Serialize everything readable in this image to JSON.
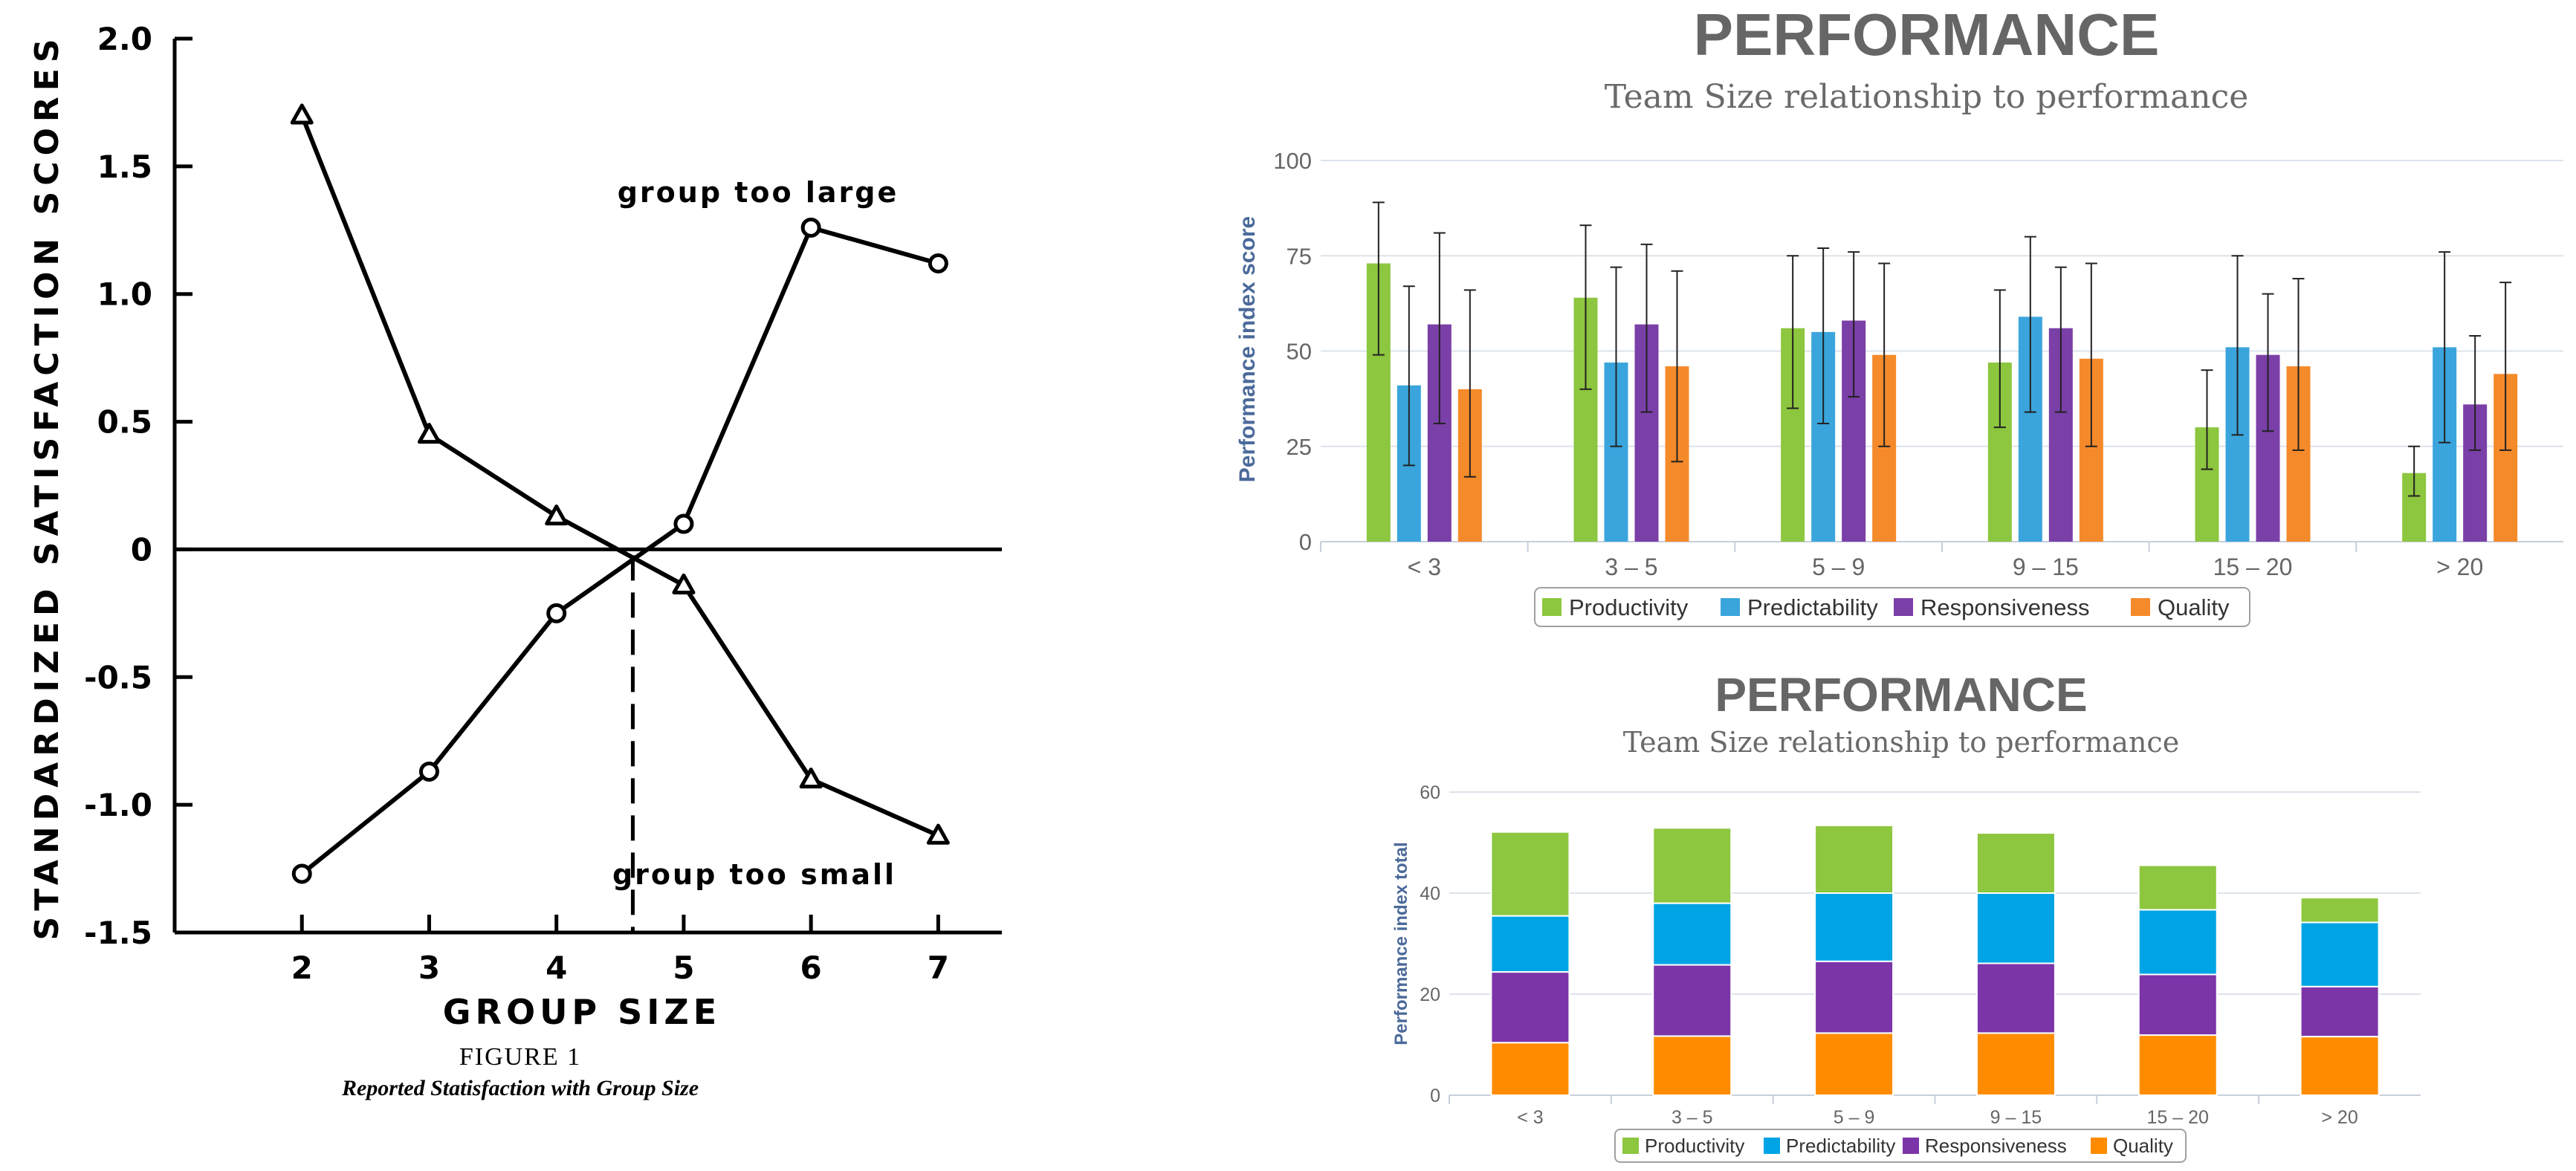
{
  "chart_data": [
    {
      "type": "line",
      "xlabel": "GROUP SIZE",
      "ylabel": "STANDARDIZED SATISFACTION SCORES",
      "caption_title": "FIGURE 1",
      "caption_subtitle": "Reported Statisfaction with Group Size",
      "x_ticks": [
        "2",
        "3",
        "4",
        "5",
        "6",
        "7"
      ],
      "y_ticks": [
        "2.0",
        "1.5",
        "1.0",
        "0.5",
        "0",
        "-0.5",
        "-1.0",
        "-1.5"
      ],
      "xlim": [
        1,
        7.5
      ],
      "ylim": [
        -1.5,
        2.0
      ],
      "reference_line_x": 4.6,
      "series": [
        {
          "name": "group too large",
          "marker": "circle",
          "x": [
            2,
            3,
            4,
            5,
            6,
            7
          ],
          "y": [
            -1.27,
            -0.87,
            -0.25,
            0.1,
            1.26,
            1.12
          ]
        },
        {
          "name": "group too small",
          "marker": "triangle",
          "x": [
            2,
            3,
            4,
            5,
            6,
            7
          ],
          "y": [
            1.7,
            0.45,
            0.13,
            -0.14,
            -0.9,
            -1.12
          ]
        }
      ]
    },
    {
      "type": "bar",
      "title": "PERFORMANCE",
      "subtitle": "Team Size relationship to performance",
      "ylabel": "Performance index score",
      "categories": [
        "< 3",
        "3 – 5",
        "5 – 9",
        "9 – 15",
        "15 – 20",
        "> 20"
      ],
      "y_ticks": [
        "0",
        "25",
        "50",
        "75",
        "100"
      ],
      "ylim": [
        0,
        100
      ],
      "legend_position": "bottom",
      "series": [
        {
          "name": "Productivity",
          "color": "#8dc63f",
          "values": [
            73,
            64,
            56,
            47,
            30,
            18
          ],
          "err_low": [
            49,
            40,
            35,
            30,
            19,
            12
          ],
          "err_high": [
            89,
            83,
            75,
            66,
            45,
            25
          ]
        },
        {
          "name": "Predictability",
          "color": "#3aa5dc",
          "values": [
            41,
            47,
            55,
            59,
            51,
            51
          ],
          "err_low": [
            20,
            25,
            31,
            34,
            28,
            26
          ],
          "err_high": [
            67,
            72,
            77,
            80,
            75,
            76
          ]
        },
        {
          "name": "Responsiveness",
          "color": "#7b3fa8",
          "values": [
            57,
            57,
            58,
            56,
            49,
            36
          ],
          "err_low": [
            31,
            34,
            38,
            34,
            29,
            24
          ],
          "err_high": [
            81,
            78,
            76,
            72,
            65,
            54
          ]
        },
        {
          "name": "Quality",
          "color": "#f58a2a",
          "values": [
            40,
            46,
            49,
            48,
            46,
            44
          ],
          "err_low": [
            17,
            21,
            25,
            25,
            24,
            24
          ],
          "err_high": [
            66,
            71,
            73,
            73,
            69,
            68
          ]
        }
      ]
    },
    {
      "type": "bar",
      "stacked": true,
      "title": "PERFORMANCE",
      "subtitle": "Team Size relationship to performance",
      "ylabel": "Performance index total",
      "categories": [
        "< 3",
        "3 – 5",
        "5 – 9",
        "9 – 15",
        "15 – 20",
        "> 20"
      ],
      "y_ticks": [
        "0",
        "20",
        "40",
        "60"
      ],
      "ylim": [
        0,
        60
      ],
      "legend_position": "bottom",
      "series": [
        {
          "name": "Quality",
          "color": "#ff8c00",
          "values": [
            10.4,
            11.7,
            12.3,
            12.3,
            11.9,
            11.6
          ]
        },
        {
          "name": "Responsiveness",
          "color": "#7b35a8",
          "values": [
            14.0,
            14.1,
            14.2,
            13.8,
            12.0,
            9.9
          ]
        },
        {
          "name": "Predictability",
          "color": "#00a4e4",
          "values": [
            11.1,
            12.2,
            13.5,
            13.9,
            12.8,
            12.7
          ]
        },
        {
          "name": "Productivity",
          "color": "#8dc63f",
          "values": [
            16.6,
            14.9,
            13.4,
            11.9,
            8.8,
            4.9
          ]
        }
      ]
    }
  ]
}
